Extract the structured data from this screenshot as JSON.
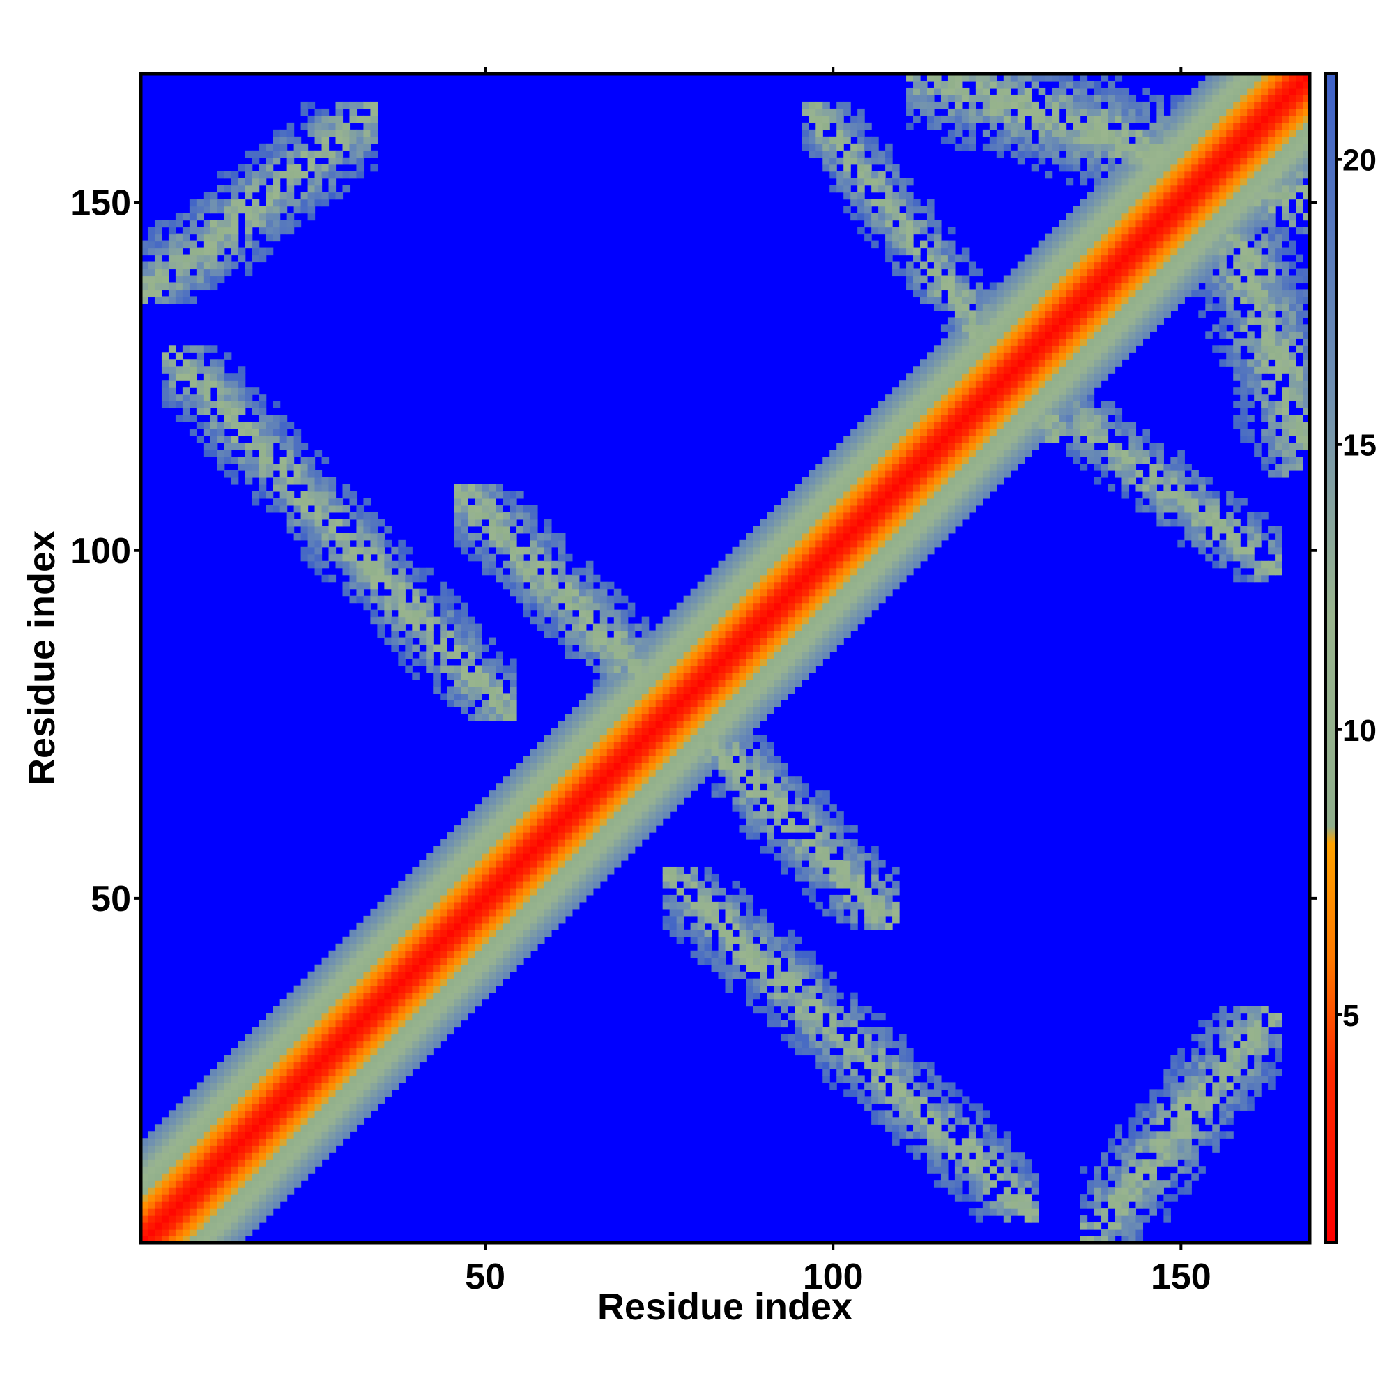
{
  "chart_data": {
    "type": "heatmap",
    "title": "",
    "xlabel": "Residue index",
    "ylabel": "Residue index",
    "n_residues": 168,
    "xlim": [
      1,
      168
    ],
    "ylim": [
      1,
      168
    ],
    "x_ticks": [
      50,
      100,
      150
    ],
    "y_ticks": [
      50,
      100,
      150
    ],
    "colorbar": {
      "range": [
        1,
        21.5
      ],
      "ticks": [
        5,
        10,
        15,
        20
      ],
      "stops": [
        {
          "value": 1,
          "color": "#ff0000"
        },
        {
          "value": 4,
          "color": "#ff2a00"
        },
        {
          "value": 6,
          "color": "#ff7a00"
        },
        {
          "value": 8,
          "color": "#ffa200"
        },
        {
          "value": 8.3,
          "color": "#8fae8c"
        },
        {
          "value": 12,
          "color": "#9ab58e"
        },
        {
          "value": 16,
          "color": "#6e8fb2"
        },
        {
          "value": 21.5,
          "color": "#3f62c8"
        }
      ],
      "background_color": "#0000ff"
    },
    "structure_note_values": {
      "diagonal": true,
      "contact_bands": [
        {
          "residues_a": [
            5,
            30
          ],
          "residues_b": [
            140,
            160
          ],
          "orientation": "parallel"
        },
        {
          "residues_a": [
            8,
            50
          ],
          "residues_b": [
            80,
            125
          ],
          "orientation": "antiparallel"
        },
        {
          "residues_a": [
            50,
            95
          ],
          "residues_b": [
            60,
            105
          ],
          "orientation": "antiparallel"
        },
        {
          "residues_a": [
            100,
            130
          ],
          "residues_b": [
            120,
            160
          ],
          "orientation": "antiparallel"
        },
        {
          "residues_a": [
            115,
            168
          ],
          "residues_b": [
            150,
            168
          ],
          "orientation": "antiparallel"
        }
      ]
    }
  }
}
